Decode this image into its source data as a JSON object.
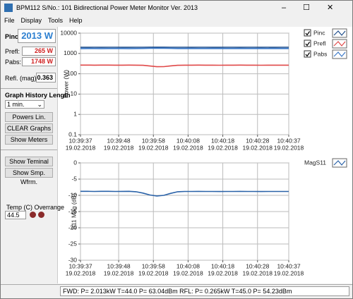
{
  "window": {
    "title": "BPM112 S/No.: 101 Bidirectional Power Meter Monitor Ver. 2013"
  },
  "menu": [
    "File",
    "Display",
    "Tools",
    "Help"
  ],
  "readouts": {
    "pinc_label": "Pinc:",
    "pinc": "2013 W",
    "prefl_label": "Prefl:",
    "prefl": "265 W",
    "pabs_label": "Pabs:",
    "pabs": "1748 W",
    "refl_label": "Refl. (mag):",
    "refl": "0.363"
  },
  "history": {
    "label": "Graph History Length",
    "value": "1 min."
  },
  "buttons": [
    "Powers Lin. Scale",
    "CLEAR Graphs",
    "Show Meters",
    "Show Teminal",
    "Show Smp. Wfrm."
  ],
  "temp": {
    "label": "Temp (C) Overrange",
    "value": "44.5"
  },
  "status": "FWD: P=  2.013kW T=44.0 P= 63.04dBm RFL: P=  0.265kW T=45.0 P= 54.23dBm",
  "chart_data": [
    {
      "type": "line",
      "ylabel": "Power (W)",
      "log_y": true,
      "grid": true,
      "legend": "right",
      "checkboxes": true,
      "ylim": [
        0.1,
        10000
      ],
      "yticks": [
        0.1,
        1,
        10,
        100,
        1000,
        10000
      ],
      "xlim": [
        "10:39:37",
        "10:40:37"
      ],
      "xticks": [
        {
          "time": "10:39:37",
          "date": "19.02.2018"
        },
        {
          "time": "10:39:48",
          "date": "19.02.2018"
        },
        {
          "time": "10:39:58",
          "date": "19.02.2018"
        },
        {
          "time": "10:40:08",
          "date": "19.02.2018"
        },
        {
          "time": "10:40:18",
          "date": "19.02.2018"
        },
        {
          "time": "10:40:28",
          "date": "19.02.2018"
        },
        {
          "time": "10:40:37",
          "date": "19.02.2018"
        }
      ],
      "x": [
        "10:39:37",
        "10:39:39",
        "10:39:41",
        "10:39:43",
        "10:39:45",
        "10:39:47",
        "10:39:49",
        "10:39:51",
        "10:39:53",
        "10:39:55",
        "10:39:57",
        "10:39:59",
        "10:40:01",
        "10:40:03",
        "10:40:05",
        "10:40:07",
        "10:40:09",
        "10:40:11",
        "10:40:13",
        "10:40:15",
        "10:40:17",
        "10:40:19",
        "10:40:21",
        "10:40:23",
        "10:40:25",
        "10:40:27",
        "10:40:29",
        "10:40:31",
        "10:40:33",
        "10:40:35",
        "10:40:37"
      ],
      "series": [
        {
          "name": "Pinc",
          "color": "#1f4e8c",
          "values": [
            2010,
            2012,
            2015,
            2011,
            2013,
            2014,
            2012,
            2010,
            2015,
            2020,
            2030,
            2040,
            2035,
            2025,
            2015,
            2013,
            2012,
            2014,
            2013,
            2011,
            2012,
            2015,
            2013,
            2012,
            2014,
            2013,
            2011,
            2013,
            2012,
            2014,
            2013
          ]
        },
        {
          "name": "Prefl",
          "color": "#e04848",
          "values": [
            268,
            267,
            266,
            268,
            267,
            265,
            266,
            268,
            265,
            262,
            240,
            222,
            225,
            245,
            262,
            266,
            265,
            267,
            266,
            265,
            264,
            266,
            265,
            267,
            266,
            265,
            264,
            266,
            265,
            266,
            265
          ]
        },
        {
          "name": "Pabs",
          "color": "#3a78c8",
          "values": [
            1742,
            1745,
            1749,
            1743,
            1746,
            1749,
            1746,
            1742,
            1750,
            1758,
            1790,
            1818,
            1810,
            1780,
            1753,
            1747,
            1747,
            1747,
            1747,
            1746,
            1748,
            1749,
            1748,
            1745,
            1748,
            1748,
            1747,
            1747,
            1747,
            1748,
            1748
          ]
        }
      ]
    },
    {
      "type": "line",
      "ylabel": "S11 Mag (dB)",
      "log_y": false,
      "grid": true,
      "legend": "right",
      "checkboxes": false,
      "ylim": [
        -30,
        0
      ],
      "yticks": [
        0,
        -5,
        -10,
        -15,
        -20,
        -25,
        -30
      ],
      "xlim": [
        "10:39:37",
        "10:40:37"
      ],
      "xticks": [
        {
          "time": "10:39:37",
          "date": "19.02.2018"
        },
        {
          "time": "10:39:48",
          "date": "19.02.2018"
        },
        {
          "time": "10:39:58",
          "date": "19.02.2018"
        },
        {
          "time": "10:40:08",
          "date": "19.02.2018"
        },
        {
          "time": "10:40:18",
          "date": "19.02.2018"
        },
        {
          "time": "10:40:28",
          "date": "19.02.2018"
        },
        {
          "time": "10:40:37",
          "date": "19.02.2018"
        }
      ],
      "x": [
        "10:39:37",
        "10:39:39",
        "10:39:41",
        "10:39:43",
        "10:39:45",
        "10:39:47",
        "10:39:49",
        "10:39:51",
        "10:39:53",
        "10:39:55",
        "10:39:57",
        "10:39:59",
        "10:40:01",
        "10:40:03",
        "10:40:05",
        "10:40:07",
        "10:40:09",
        "10:40:11",
        "10:40:13",
        "10:40:15",
        "10:40:17",
        "10:40:19",
        "10:40:21",
        "10:40:23",
        "10:40:25",
        "10:40:27",
        "10:40:29",
        "10:40:31",
        "10:40:33",
        "10:40:35",
        "10:40:37"
      ],
      "series": [
        {
          "name": "MagS11",
          "color": "#2a62a8",
          "values": [
            -8.76,
            -8.77,
            -8.8,
            -8.75,
            -8.77,
            -8.81,
            -8.79,
            -8.75,
            -8.9,
            -9.3,
            -9.9,
            -10.2,
            -10.0,
            -9.4,
            -8.9,
            -8.8,
            -8.81,
            -8.78,
            -8.8,
            -8.81,
            -8.83,
            -8.8,
            -8.81,
            -8.78,
            -8.8,
            -8.81,
            -8.82,
            -8.8,
            -8.81,
            -8.8,
            -8.81
          ]
        }
      ]
    }
  ]
}
